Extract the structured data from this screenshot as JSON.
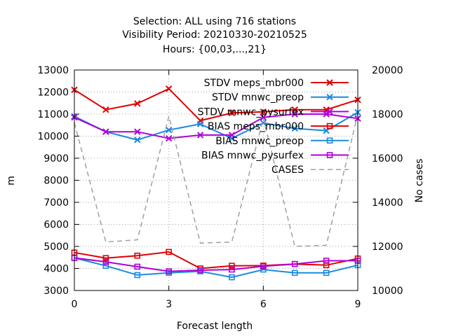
{
  "chart_data": {
    "type": "line",
    "title_lines": [
      "Selection: ALL using   716 stations",
      "Visibility   Period: 20210330-20210525",
      "Hours: {00,03,...,21}"
    ],
    "xlabel": "Forecast length",
    "ylabel": "m",
    "y2label": "No cases",
    "xlim": [
      0,
      9
    ],
    "ylim": [
      3000,
      13000
    ],
    "y2lim": [
      10000,
      20000
    ],
    "x_ticks": [
      0,
      3,
      6,
      9
    ],
    "y_ticks": [
      3000,
      4000,
      5000,
      6000,
      7000,
      8000,
      9000,
      10000,
      11000,
      12000,
      13000
    ],
    "y2_ticks": [
      10000,
      12000,
      14000,
      16000,
      18000,
      20000
    ],
    "grid": true,
    "legend_position": "top-right",
    "x": [
      0,
      1,
      2,
      3,
      4,
      5,
      6,
      7,
      8,
      9
    ],
    "series": [
      {
        "name": "STDV meps_mbr000",
        "color": "#e00000",
        "marker": "x",
        "axis": "y",
        "values": [
          12100,
          11200,
          11480,
          12150,
          10700,
          11050,
          11100,
          11200,
          11200,
          11650
        ]
      },
      {
        "name": "STDV mnwc_preop",
        "color": "#1a8ae0",
        "marker": "x",
        "axis": "y",
        "values": [
          10900,
          10200,
          9830,
          10280,
          10550,
          9900,
          10600,
          10350,
          10250,
          11080
        ]
      },
      {
        "name": "STDV mnwc_pysurfex",
        "color": "#b000d8",
        "marker": "x",
        "axis": "y",
        "values": [
          10850,
          10200,
          10200,
          9900,
          10050,
          10050,
          10850,
          11000,
          11000,
          10800
        ]
      },
      {
        "name": "BIAS meps_mbr000",
        "color": "#e00000",
        "marker": "square",
        "axis": "y",
        "values": [
          4720,
          4470,
          4580,
          4750,
          4000,
          4120,
          4130,
          4200,
          4150,
          4450
        ]
      },
      {
        "name": "BIAS mnwc_preop",
        "color": "#1a8ae0",
        "marker": "square",
        "axis": "y",
        "values": [
          4480,
          4120,
          3700,
          3800,
          3870,
          3600,
          3950,
          3800,
          3800,
          4150
        ]
      },
      {
        "name": "BIAS mnwc_pysurfex",
        "color": "#b000d8",
        "marker": "square",
        "axis": "y",
        "values": [
          4480,
          4300,
          4080,
          3870,
          3920,
          3950,
          4100,
          4200,
          4350,
          4350
        ]
      },
      {
        "name": "CASES",
        "color": "#a0a0a0",
        "marker": "none",
        "dash": true,
        "axis": "y2",
        "values": [
          17600,
          12200,
          12300,
          17900,
          12150,
          12200,
          17800,
          12000,
          12050,
          18000
        ]
      }
    ]
  }
}
